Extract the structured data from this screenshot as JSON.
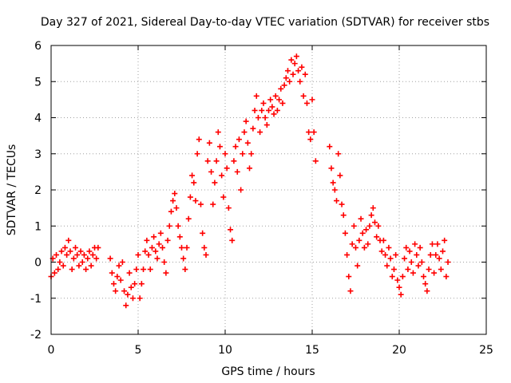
{
  "chart_data": {
    "type": "scatter",
    "title": "Day 327 of 2021, Sidereal Day-to-day VTEC variation (SDTVAR) for receiver stbs",
    "xlabel": "GPS time / hours",
    "ylabel": "SDTVAR / TECUs",
    "xlim": [
      0,
      25
    ],
    "ylim": [
      -2,
      6
    ],
    "xticks": [
      0,
      5,
      10,
      15,
      20,
      25
    ],
    "yticks": [
      -2,
      -1,
      0,
      1,
      2,
      3,
      4,
      5,
      6
    ],
    "grid": true,
    "marker": "+",
    "color": "#ff0000",
    "series": [
      {
        "name": "SDTVAR",
        "points": [
          [
            0.0,
            -0.4
          ],
          [
            0.1,
            0.1
          ],
          [
            0.2,
            -0.3
          ],
          [
            0.3,
            0.2
          ],
          [
            0.4,
            -0.2
          ],
          [
            0.5,
            0.0
          ],
          [
            0.6,
            0.3
          ],
          [
            0.7,
            -0.1
          ],
          [
            0.8,
            0.4
          ],
          [
            0.9,
            0.2
          ],
          [
            1.0,
            0.6
          ],
          [
            1.1,
            0.3
          ],
          [
            1.2,
            -0.2
          ],
          [
            1.3,
            0.1
          ],
          [
            1.4,
            0.4
          ],
          [
            1.5,
            0.2
          ],
          [
            1.6,
            -0.1
          ],
          [
            1.7,
            0.3
          ],
          [
            1.8,
            0.0
          ],
          [
            1.9,
            0.2
          ],
          [
            2.0,
            -0.2
          ],
          [
            2.1,
            0.1
          ],
          [
            2.2,
            0.3
          ],
          [
            2.3,
            -0.1
          ],
          [
            2.4,
            0.2
          ],
          [
            2.5,
            0.4
          ],
          [
            2.6,
            0.1
          ],
          [
            2.7,
            0.4
          ],
          [
            3.4,
            0.1
          ],
          [
            3.5,
            -0.3
          ],
          [
            3.6,
            -0.6
          ],
          [
            3.7,
            -0.8
          ],
          [
            3.8,
            -0.4
          ],
          [
            3.9,
            -0.1
          ],
          [
            4.0,
            -0.5
          ],
          [
            4.1,
            0.0
          ],
          [
            4.2,
            -0.8
          ],
          [
            4.3,
            -1.2
          ],
          [
            4.4,
            -0.9
          ],
          [
            4.5,
            -0.3
          ],
          [
            4.6,
            -0.7
          ],
          [
            4.7,
            -1.0
          ],
          [
            4.8,
            -0.6
          ],
          [
            4.9,
            -0.2
          ],
          [
            5.0,
            0.2
          ],
          [
            5.1,
            -1.0
          ],
          [
            5.2,
            -0.6
          ],
          [
            5.3,
            -0.2
          ],
          [
            5.4,
            0.3
          ],
          [
            5.5,
            0.6
          ],
          [
            5.6,
            0.2
          ],
          [
            5.7,
            -0.2
          ],
          [
            5.8,
            0.4
          ],
          [
            5.9,
            0.7
          ],
          [
            6.0,
            0.3
          ],
          [
            6.1,
            0.1
          ],
          [
            6.2,
            0.5
          ],
          [
            6.3,
            0.8
          ],
          [
            6.4,
            0.4
          ],
          [
            6.5,
            0.0
          ],
          [
            6.6,
            -0.3
          ],
          [
            6.7,
            0.6
          ],
          [
            6.8,
            1.0
          ],
          [
            6.9,
            1.4
          ],
          [
            7.0,
            1.7
          ],
          [
            7.1,
            1.9
          ],
          [
            7.2,
            1.5
          ],
          [
            7.3,
            1.0
          ],
          [
            7.4,
            0.7
          ],
          [
            7.5,
            0.4
          ],
          [
            7.6,
            0.1
          ],
          [
            7.7,
            -0.2
          ],
          [
            7.8,
            0.4
          ],
          [
            7.9,
            1.2
          ],
          [
            8.0,
            1.8
          ],
          [
            8.1,
            2.4
          ],
          [
            8.2,
            2.2
          ],
          [
            8.3,
            1.7
          ],
          [
            8.4,
            3.0
          ],
          [
            8.5,
            3.4
          ],
          [
            8.6,
            1.6
          ],
          [
            8.7,
            0.8
          ],
          [
            8.8,
            0.4
          ],
          [
            8.9,
            0.2
          ],
          [
            9.0,
            2.8
          ],
          [
            9.1,
            3.3
          ],
          [
            9.2,
            2.5
          ],
          [
            9.3,
            1.6
          ],
          [
            9.4,
            2.2
          ],
          [
            9.5,
            2.8
          ],
          [
            9.6,
            3.6
          ],
          [
            9.7,
            3.2
          ],
          [
            9.8,
            2.4
          ],
          [
            9.9,
            1.8
          ],
          [
            10.0,
            3.0
          ],
          [
            10.1,
            2.6
          ],
          [
            10.2,
            1.5
          ],
          [
            10.3,
            0.9
          ],
          [
            10.4,
            0.6
          ],
          [
            10.5,
            2.8
          ],
          [
            10.6,
            3.2
          ],
          [
            10.7,
            2.5
          ],
          [
            10.8,
            3.4
          ],
          [
            10.9,
            2.0
          ],
          [
            11.0,
            3.0
          ],
          [
            11.1,
            3.6
          ],
          [
            11.2,
            3.9
          ],
          [
            11.3,
            3.3
          ],
          [
            11.4,
            2.6
          ],
          [
            11.5,
            3.0
          ],
          [
            11.6,
            3.7
          ],
          [
            11.7,
            4.2
          ],
          [
            11.8,
            4.6
          ],
          [
            11.9,
            4.0
          ],
          [
            12.0,
            3.6
          ],
          [
            12.1,
            4.2
          ],
          [
            12.2,
            4.4
          ],
          [
            12.3,
            4.0
          ],
          [
            12.4,
            3.8
          ],
          [
            12.5,
            4.2
          ],
          [
            12.6,
            4.5
          ],
          [
            12.7,
            4.3
          ],
          [
            12.8,
            4.1
          ],
          [
            12.9,
            4.6
          ],
          [
            13.0,
            4.2
          ],
          [
            13.1,
            4.5
          ],
          [
            13.2,
            4.8
          ],
          [
            13.3,
            4.4
          ],
          [
            13.4,
            4.9
          ],
          [
            13.5,
            5.1
          ],
          [
            13.6,
            5.3
          ],
          [
            13.7,
            5.0
          ],
          [
            13.8,
            5.6
          ],
          [
            13.9,
            5.2
          ],
          [
            14.0,
            5.5
          ],
          [
            14.1,
            5.7
          ],
          [
            14.2,
            5.3
          ],
          [
            14.3,
            5.0
          ],
          [
            14.4,
            5.4
          ],
          [
            14.5,
            4.6
          ],
          [
            14.6,
            5.2
          ],
          [
            14.7,
            4.4
          ],
          [
            14.8,
            3.6
          ],
          [
            14.9,
            3.4
          ],
          [
            15.0,
            4.5
          ],
          [
            15.1,
            3.6
          ],
          [
            15.2,
            2.8
          ],
          [
            16.0,
            3.2
          ],
          [
            16.1,
            2.6
          ],
          [
            16.2,
            2.2
          ],
          [
            16.3,
            2.0
          ],
          [
            16.4,
            1.7
          ],
          [
            16.5,
            3.0
          ],
          [
            16.6,
            2.4
          ],
          [
            16.7,
            1.6
          ],
          [
            16.8,
            1.3
          ],
          [
            16.9,
            0.8
          ],
          [
            17.0,
            0.2
          ],
          [
            17.1,
            -0.4
          ],
          [
            17.2,
            -0.8
          ],
          [
            17.3,
            0.5
          ],
          [
            17.4,
            1.0
          ],
          [
            17.5,
            0.4
          ],
          [
            17.6,
            -0.1
          ],
          [
            17.7,
            0.6
          ],
          [
            17.8,
            1.2
          ],
          [
            17.9,
            0.8
          ],
          [
            18.0,
            0.4
          ],
          [
            18.1,
            0.9
          ],
          [
            18.2,
            0.5
          ],
          [
            18.3,
            1.0
          ],
          [
            18.4,
            1.3
          ],
          [
            18.5,
            1.5
          ],
          [
            18.6,
            1.1
          ],
          [
            18.7,
            0.7
          ],
          [
            18.8,
            1.0
          ],
          [
            18.9,
            0.6
          ],
          [
            19.0,
            0.3
          ],
          [
            19.1,
            0.6
          ],
          [
            19.2,
            0.2
          ],
          [
            19.3,
            -0.1
          ],
          [
            19.4,
            0.4
          ],
          [
            19.5,
            0.1
          ],
          [
            19.6,
            -0.4
          ],
          [
            19.7,
            -0.2
          ],
          [
            19.8,
            0.2
          ],
          [
            19.9,
            -0.5
          ],
          [
            20.0,
            -0.7
          ],
          [
            20.1,
            -0.9
          ],
          [
            20.2,
            -0.4
          ],
          [
            20.3,
            0.1
          ],
          [
            20.4,
            0.4
          ],
          [
            20.5,
            -0.2
          ],
          [
            20.6,
            0.3
          ],
          [
            20.7,
            0.0
          ],
          [
            20.8,
            -0.3
          ],
          [
            20.9,
            0.5
          ],
          [
            21.0,
            0.2
          ],
          [
            21.1,
            -0.1
          ],
          [
            21.2,
            0.4
          ],
          [
            21.3,
            0.0
          ],
          [
            21.4,
            -0.4
          ],
          [
            21.5,
            -0.6
          ],
          [
            21.6,
            -0.8
          ],
          [
            21.7,
            -0.2
          ],
          [
            21.8,
            0.2
          ],
          [
            21.9,
            0.5
          ],
          [
            22.0,
            -0.3
          ],
          [
            22.1,
            0.2
          ],
          [
            22.2,
            0.5
          ],
          [
            22.3,
            0.1
          ],
          [
            22.4,
            -0.2
          ],
          [
            22.5,
            0.3
          ],
          [
            22.6,
            0.6
          ],
          [
            22.7,
            -0.4
          ],
          [
            22.8,
            0.0
          ]
        ]
      }
    ]
  }
}
